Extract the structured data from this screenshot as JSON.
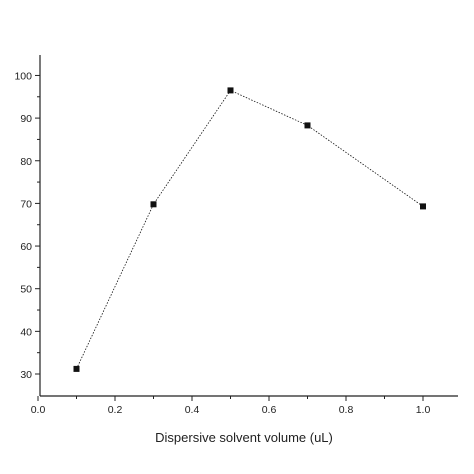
{
  "chart_data": {
    "type": "line",
    "title": "",
    "xlabel": "Dispersive solvent volume  (uL)",
    "ylabel": "",
    "x": [
      0.1,
      0.3,
      0.5,
      0.7,
      1.0
    ],
    "series": [
      {
        "values": [
          31.2,
          69.8,
          96.5,
          88.3,
          69.3
        ]
      }
    ],
    "xlim": [
      0.0,
      1.1
    ],
    "ylim": [
      25,
      105
    ],
    "xticks": [
      "0.0",
      "0.2",
      "0.4",
      "0.6",
      "0.8",
      "1.0"
    ],
    "yticks": [
      "30",
      "40",
      "50",
      "60",
      "70",
      "80",
      "90",
      "100"
    ],
    "grid": false,
    "legend": "none",
    "marker": "square",
    "line_style": "dotted",
    "color": "#111111"
  }
}
